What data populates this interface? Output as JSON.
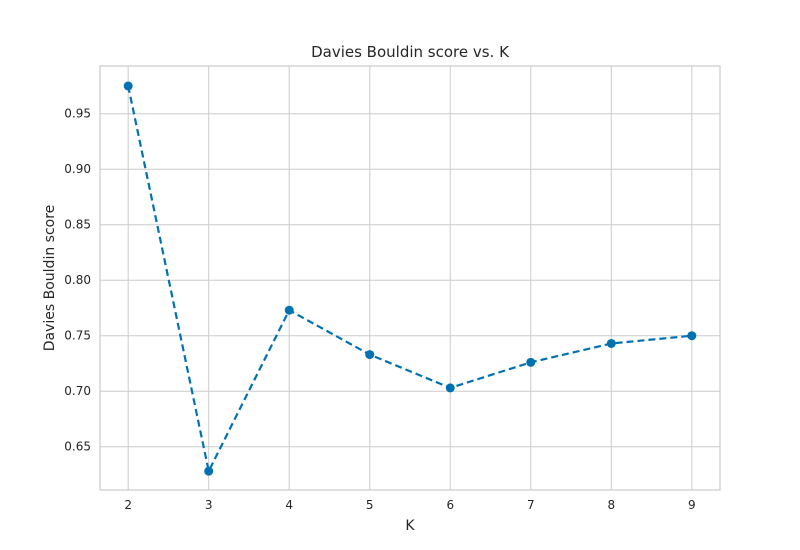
{
  "chart_data": {
    "type": "line",
    "title": "Davies Bouldin score vs. K",
    "xlabel": "K",
    "ylabel": "Davies Bouldin score",
    "x": [
      2,
      3,
      4,
      5,
      6,
      7,
      8,
      9
    ],
    "series": [
      {
        "values": [
          0.975,
          0.628,
          0.773,
          0.733,
          0.703,
          0.726,
          0.743,
          0.75
        ]
      }
    ],
    "xlim": [
      1.65,
      9.35
    ],
    "ylim": [
      0.611,
      0.993
    ],
    "xticks": [
      "2",
      "3",
      "4",
      "5",
      "6",
      "7",
      "8",
      "9"
    ],
    "yticks": [
      "0.65",
      "0.70",
      "0.75",
      "0.80",
      "0.85",
      "0.90",
      "0.95"
    ],
    "grid": true,
    "line_style": "dashed",
    "marker": "circle",
    "colors": {
      "series": "#0072B2",
      "grid": "#cccccc",
      "frame": "#cccccc",
      "text": "#262626"
    }
  }
}
